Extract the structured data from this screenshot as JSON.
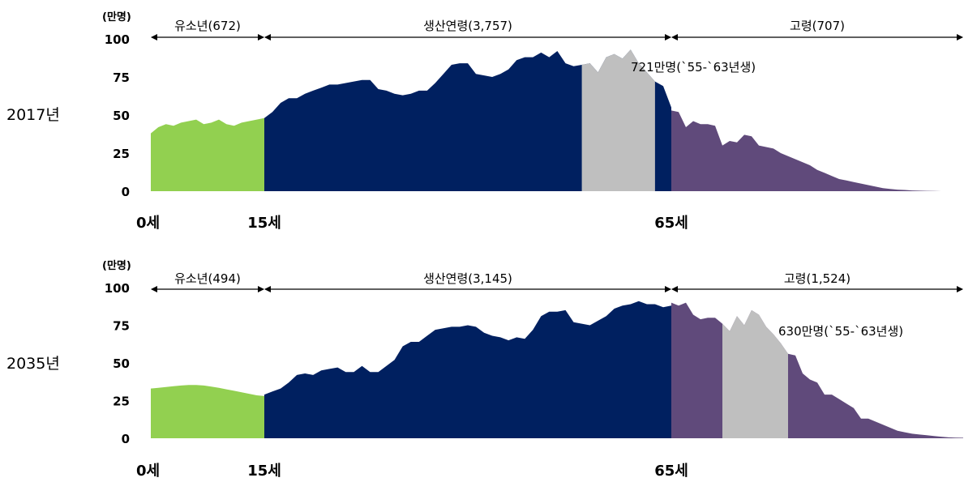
{
  "chart_data": [
    {
      "type": "area",
      "title": "2017년",
      "ylabel": "(만명)",
      "ylim": [
        0,
        100
      ],
      "yticks": [
        "100",
        "75",
        "50",
        "25",
        "0"
      ],
      "xticks": [
        {
          "label": "0세",
          "age": 0
        },
        {
          "label": "15세",
          "age": 15
        },
        {
          "label": "65세",
          "age": 65
        }
      ],
      "segments": [
        {
          "label": "유소년(672)",
          "from": 0,
          "to": 15
        },
        {
          "label": "생산연령(3,757)",
          "from": 15,
          "to": 65
        },
        {
          "label": "고령(707)",
          "from": 65,
          "to": 105
        }
      ],
      "annotation": {
        "text": "721만명(`55-`63년생)",
        "from": 54,
        "to": 63
      },
      "colors": {
        "youth": "#92D050",
        "working": "#002060",
        "elderly": "#604A7B",
        "babyboom": "#BFBFBF"
      },
      "series": [
        {
          "name": "유소년",
          "x": [
            0,
            1,
            2,
            3,
            4,
            5,
            6,
            7,
            8,
            9,
            10,
            11,
            12,
            13,
            14,
            15
          ],
          "values": [
            38,
            42,
            44,
            43,
            45,
            46,
            47,
            44,
            45,
            47,
            44,
            43,
            45,
            46,
            47,
            48
          ]
        },
        {
          "name": "생산연령",
          "x": [
            15,
            16,
            17,
            18,
            19,
            20,
            21,
            22,
            23,
            24,
            25,
            26,
            27,
            28,
            29,
            30,
            31,
            32,
            33,
            34,
            35,
            36,
            37,
            38,
            39,
            40,
            41,
            42,
            43,
            44,
            45,
            46,
            47,
            48,
            49,
            50,
            51,
            52,
            53,
            54,
            55,
            56,
            57,
            58,
            59,
            60,
            61,
            62,
            63,
            64,
            65
          ],
          "values": [
            48,
            52,
            58,
            61,
            61,
            64,
            66,
            68,
            70,
            70,
            71,
            72,
            73,
            73,
            67,
            66,
            64,
            63,
            64,
            66,
            66,
            71,
            77,
            83,
            84,
            84,
            77,
            76,
            75,
            77,
            80,
            86,
            88,
            88,
            91,
            88,
            92,
            84,
            82,
            83,
            84,
            78,
            88,
            90,
            87,
            93,
            84,
            78,
            72,
            69,
            55
          ]
        },
        {
          "name": "고령",
          "x": [
            65,
            66,
            67,
            68,
            69,
            70,
            71,
            72,
            73,
            74,
            75,
            76,
            77,
            78,
            79,
            80,
            81,
            82,
            83,
            84,
            85,
            86,
            87,
            88,
            89,
            90,
            91,
            92,
            93,
            94,
            95,
            96,
            97,
            98,
            99,
            100,
            101,
            102,
            103,
            104,
            105
          ],
          "values": [
            53,
            52,
            42,
            46,
            44,
            44,
            43,
            30,
            33,
            32,
            37,
            36,
            30,
            29,
            28,
            25,
            23,
            21,
            19,
            17,
            14,
            12,
            10,
            8,
            7,
            6,
            5,
            4,
            3,
            2,
            1.5,
            1,
            0.8,
            0.5,
            0.3,
            0.2,
            0.1,
            0,
            0,
            0,
            0
          ]
        }
      ]
    },
    {
      "type": "area",
      "title": "2035년",
      "ylabel": "(만명)",
      "ylim": [
        0,
        100
      ],
      "yticks": [
        "100",
        "75",
        "50",
        "25",
        "0"
      ],
      "xticks": [
        {
          "label": "0세",
          "age": 0
        },
        {
          "label": "15세",
          "age": 15
        },
        {
          "label": "65세",
          "age": 65
        }
      ],
      "segments": [
        {
          "label": "유소년(494)",
          "from": 0,
          "to": 15
        },
        {
          "label": "생산연령(3,145)",
          "from": 15,
          "to": 65
        },
        {
          "label": "고령(1,524)",
          "from": 65,
          "to": 105
        }
      ],
      "annotation": {
        "text": "630만명(`55-`63년생)",
        "from": 72,
        "to": 81
      },
      "colors": {
        "youth": "#92D050",
        "working": "#002060",
        "elderly": "#604A7B",
        "babyboom": "#BFBFBF"
      },
      "series": [
        {
          "name": "유소년",
          "x": [
            0,
            1,
            2,
            3,
            4,
            5,
            6,
            7,
            8,
            9,
            10,
            11,
            12,
            13,
            14,
            15
          ],
          "values": [
            33,
            33.5,
            34,
            34.5,
            35,
            35.3,
            35.3,
            35,
            34.3,
            33.5,
            32.5,
            31.5,
            30.5,
            29.5,
            28.5,
            28
          ]
        },
        {
          "name": "생산연령",
          "x": [
            15,
            16,
            17,
            18,
            19,
            20,
            21,
            22,
            23,
            24,
            25,
            26,
            27,
            28,
            29,
            30,
            31,
            32,
            33,
            34,
            35,
            36,
            37,
            38,
            39,
            40,
            41,
            42,
            43,
            44,
            45,
            46,
            47,
            48,
            49,
            50,
            51,
            52,
            53,
            54,
            55,
            56,
            57,
            58,
            59,
            60,
            61,
            62,
            63,
            64,
            65
          ],
          "values": [
            29,
            31,
            33,
            37,
            42,
            43,
            42,
            45,
            46,
            47,
            44,
            44,
            48,
            44,
            44,
            48,
            52,
            61,
            64,
            64,
            68,
            72,
            73,
            74,
            74,
            75,
            74,
            70,
            68,
            67,
            65,
            67,
            66,
            72,
            81,
            84,
            84,
            85,
            77,
            76,
            75,
            78,
            81,
            86,
            88,
            89,
            91,
            89,
            89,
            87,
            88
          ]
        },
        {
          "name": "고령",
          "x": [
            65,
            66,
            67,
            68,
            69,
            70,
            71,
            72,
            73,
            74,
            75,
            76,
            77,
            78,
            79,
            80,
            81,
            82,
            83,
            84,
            85,
            86,
            87,
            88,
            89,
            90,
            91,
            92,
            93,
            94,
            95,
            96,
            97,
            98,
            99,
            100,
            101,
            102,
            103,
            104,
            105
          ],
          "values": [
            90,
            88,
            90,
            82,
            79,
            80,
            80,
            76,
            71,
            81,
            75,
            85,
            82,
            74,
            69,
            63,
            56,
            55,
            43,
            39,
            37,
            29,
            29,
            26,
            23,
            20,
            13,
            13,
            11,
            9,
            7,
            5,
            4,
            3,
            2.5,
            2,
            1.5,
            1,
            0.6,
            0.4,
            0.3
          ]
        }
      ]
    }
  ]
}
